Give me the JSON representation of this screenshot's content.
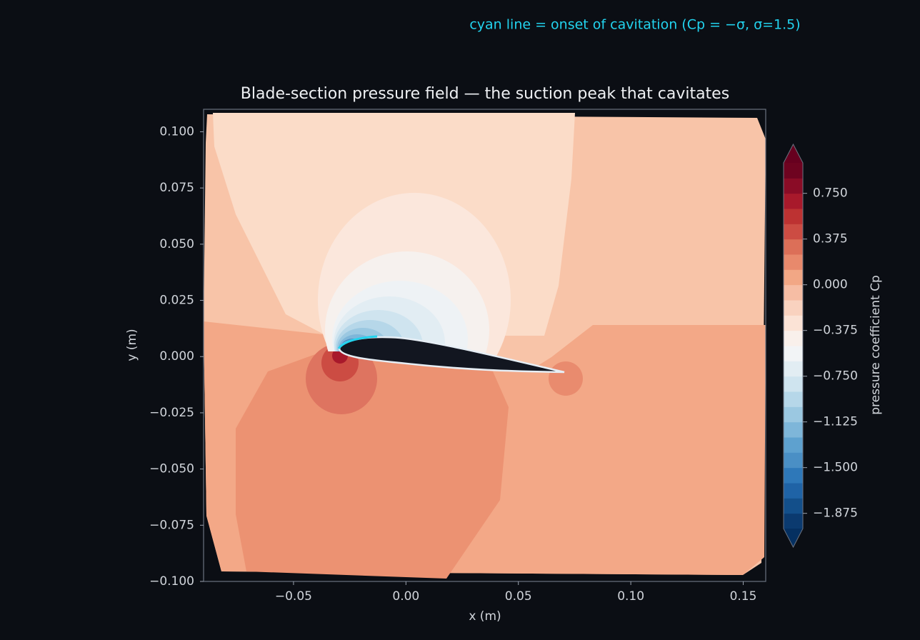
{
  "chart_data": {
    "type": "contour",
    "title": "Blade-section pressure field — the suction peak that cavitates",
    "annotation": "cyan line = onset of cavitation (Cp = −σ, σ=1.5)",
    "xlabel": "x (m)",
    "ylabel": "y (m)",
    "xlim": [
      -0.09,
      0.16
    ],
    "ylim": [
      -0.1,
      0.11
    ],
    "xticks": [
      {
        "value": -0.05,
        "label": "−0.05"
      },
      {
        "value": 0,
        "label": "0.00"
      },
      {
        "value": 0.05,
        "label": "0.05"
      },
      {
        "value": 0.1,
        "label": "0.10"
      },
      {
        "value": 0.15,
        "label": "0.15"
      }
    ],
    "yticks": [
      {
        "value": -0.1,
        "label": "−0.100"
      },
      {
        "value": -0.075,
        "label": "−0.075"
      },
      {
        "value": -0.05,
        "label": "−0.050"
      },
      {
        "value": -0.025,
        "label": "−0.025"
      },
      {
        "value": 0,
        "label": "0.000"
      },
      {
        "value": 0.025,
        "label": "0.025"
      },
      {
        "value": 0.05,
        "label": "0.050"
      },
      {
        "value": 0.075,
        "label": "0.075"
      },
      {
        "value": 0.1,
        "label": "0.100"
      }
    ],
    "colorbar": {
      "label": "pressure coefficient  Cp",
      "clim": [
        -2,
        1
      ],
      "extend": "both",
      "ticks": [
        {
          "value": 0.75,
          "label": "0.750"
        },
        {
          "value": 0.375,
          "label": "0.375"
        },
        {
          "value": 0,
          "label": "0.000"
        },
        {
          "value": -0.375,
          "label": "−0.375"
        },
        {
          "value": -0.75,
          "label": "−0.750"
        },
        {
          "value": -1.125,
          "label": "−1.125"
        },
        {
          "value": -1.5,
          "label": "−1.500"
        },
        {
          "value": -1.875,
          "label": "−1.875"
        }
      ],
      "colors": [
        "#0b3a6f",
        "#134f8a",
        "#1f63a6",
        "#2e78b9",
        "#4a8fc5",
        "#5ea1cf",
        "#7eb6d9",
        "#9bc8e1",
        "#b6d7e9",
        "#cfe4ef",
        "#e2edf3",
        "#f2f4f6",
        "#f9f0eb",
        "#fbe3d6",
        "#f9d2bf",
        "#f6bda4",
        "#f2a785",
        "#e8896c",
        "#dc6f58",
        "#cc4c43",
        "#bd3232",
        "#a8192b",
        "#8a0c26",
        "#6e0320"
      ]
    }
  }
}
